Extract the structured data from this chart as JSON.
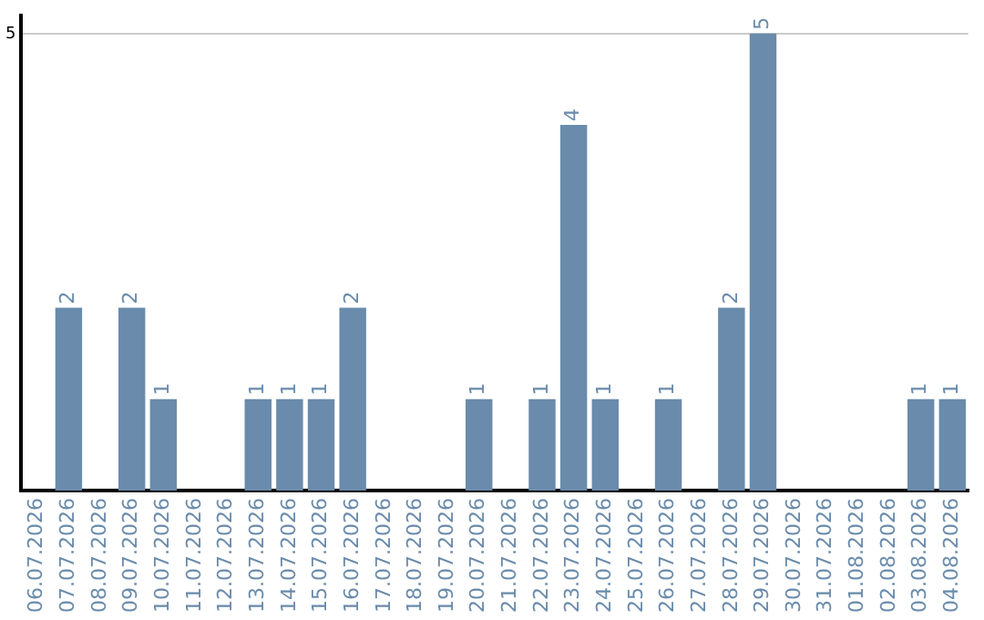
{
  "chart_data": {
    "type": "bar",
    "categories": [
      "06.07.2026",
      "07.07.2026",
      "08.07.2026",
      "09.07.2026",
      "10.07.2026",
      "11.07.2026",
      "12.07.2026",
      "13.07.2026",
      "14.07.2026",
      "15.07.2026",
      "16.07.2026",
      "17.07.2026",
      "18.07.2026",
      "19.07.2026",
      "20.07.2026",
      "21.07.2026",
      "22.07.2026",
      "23.07.2026",
      "24.07.2026",
      "25.07.2026",
      "26.07.2026",
      "27.07.2026",
      "28.07.2026",
      "29.07.2026",
      "30.07.2026",
      "31.07.2026",
      "01.08.2026",
      "02.08.2026",
      "03.08.2026",
      "04.08.2026"
    ],
    "values": [
      0,
      2,
      0,
      2,
      1,
      0,
      0,
      1,
      1,
      1,
      2,
      0,
      0,
      0,
      1,
      0,
      1,
      4,
      1,
      0,
      1,
      0,
      2,
      5,
      0,
      0,
      0,
      0,
      1,
      1
    ],
    "value_labels": [
      null,
      "2",
      null,
      "2",
      "1",
      null,
      null,
      "1",
      "1",
      "1",
      "2",
      null,
      null,
      null,
      "1",
      null,
      "1",
      "4",
      "1",
      null,
      "1",
      null,
      "2",
      "5",
      null,
      null,
      null,
      null,
      "1",
      "1"
    ],
    "color": "#6a8bab",
    "ylim": [
      0,
      5.2
    ],
    "yticks": [
      5
    ],
    "grid": "y",
    "legend": false
  }
}
